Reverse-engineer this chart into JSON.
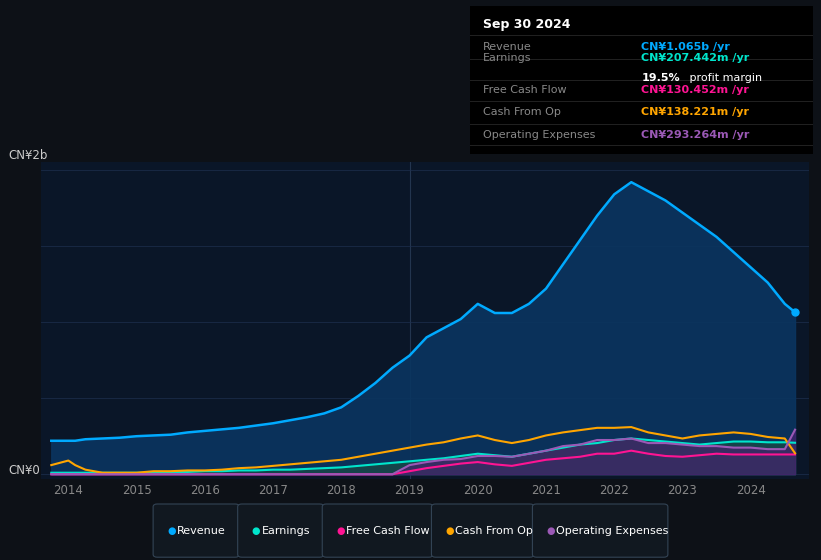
{
  "bg_color": "#0d1117",
  "plot_bg_color": "#0a1628",
  "revenue_color": "#00aaff",
  "earnings_color": "#00e5cc",
  "fcf_color": "#ff1493",
  "cashfromop_color": "#ffa500",
  "opex_color": "#9b59b6",
  "revenue_fill_color": "#0a3560",
  "earnings_fill_color": "#1a4a45",
  "opex_fill_color": "#4a2070",
  "y_label_top": "CN¥2b",
  "y_label_bottom": "CN¥0",
  "info_box": {
    "date": "Sep 30 2024",
    "revenue_label": "Revenue",
    "revenue_value": "CN¥1.065b",
    "revenue_color": "#00aaff",
    "earnings_label": "Earnings",
    "earnings_value": "CN¥207.442m",
    "earnings_color": "#00e5cc",
    "fcf_label": "Free Cash Flow",
    "fcf_value": "CN¥130.452m",
    "fcf_color": "#ff1493",
    "cashop_label": "Cash From Op",
    "cashop_value": "CN¥138.221m",
    "cashop_color": "#ffa500",
    "opex_label": "Operating Expenses",
    "opex_value": "CN¥293.264m",
    "opex_color": "#9b59b6"
  },
  "years": [
    2013.75,
    2014.0,
    2014.1,
    2014.25,
    2014.5,
    2014.75,
    2015.0,
    2015.25,
    2015.5,
    2015.75,
    2016.0,
    2016.25,
    2016.5,
    2016.75,
    2017.0,
    2017.25,
    2017.5,
    2017.75,
    2018.0,
    2018.25,
    2018.5,
    2018.75,
    2019.0,
    2019.25,
    2019.5,
    2019.75,
    2020.0,
    2020.25,
    2020.5,
    2020.75,
    2021.0,
    2021.25,
    2021.5,
    2021.75,
    2022.0,
    2022.25,
    2022.5,
    2022.75,
    2023.0,
    2023.25,
    2023.5,
    2023.75,
    2024.0,
    2024.25,
    2024.5,
    2024.65
  ],
  "revenue": [
    0.22,
    0.22,
    0.22,
    0.23,
    0.235,
    0.24,
    0.25,
    0.255,
    0.26,
    0.275,
    0.285,
    0.295,
    0.305,
    0.32,
    0.335,
    0.355,
    0.375,
    0.4,
    0.44,
    0.515,
    0.6,
    0.7,
    0.78,
    0.9,
    0.96,
    1.02,
    1.12,
    1.06,
    1.06,
    1.12,
    1.22,
    1.38,
    1.54,
    1.7,
    1.84,
    1.92,
    1.86,
    1.8,
    1.72,
    1.64,
    1.56,
    1.46,
    1.36,
    1.26,
    1.12,
    1.065
  ],
  "earnings": [
    0.01,
    0.01,
    0.01,
    0.01,
    0.01,
    0.01,
    0.01,
    0.01,
    0.015,
    0.015,
    0.02,
    0.02,
    0.025,
    0.025,
    0.03,
    0.03,
    0.035,
    0.04,
    0.045,
    0.055,
    0.065,
    0.075,
    0.085,
    0.095,
    0.105,
    0.12,
    0.135,
    0.125,
    0.115,
    0.135,
    0.155,
    0.175,
    0.195,
    0.205,
    0.225,
    0.235,
    0.225,
    0.215,
    0.205,
    0.195,
    0.205,
    0.215,
    0.215,
    0.21,
    0.21,
    0.207
  ],
  "fcf": [
    0.0,
    0.0,
    0.0,
    0.0,
    0.0,
    0.0,
    0.0,
    0.0,
    0.0,
    0.0,
    0.0,
    0.0,
    0.0,
    0.0,
    0.0,
    0.0,
    0.0,
    0.0,
    0.0,
    0.0,
    0.0,
    0.0,
    0.02,
    0.04,
    0.055,
    0.07,
    0.08,
    0.065,
    0.055,
    0.075,
    0.095,
    0.105,
    0.115,
    0.135,
    0.135,
    0.155,
    0.135,
    0.12,
    0.115,
    0.125,
    0.135,
    0.13,
    0.13,
    0.13,
    0.13,
    0.13
  ],
  "cashfromop": [
    0.06,
    0.09,
    0.06,
    0.03,
    0.01,
    0.01,
    0.01,
    0.02,
    0.02,
    0.025,
    0.025,
    0.03,
    0.04,
    0.045,
    0.055,
    0.065,
    0.075,
    0.085,
    0.095,
    0.115,
    0.135,
    0.155,
    0.175,
    0.195,
    0.21,
    0.235,
    0.255,
    0.225,
    0.205,
    0.225,
    0.255,
    0.275,
    0.29,
    0.305,
    0.305,
    0.31,
    0.275,
    0.255,
    0.235,
    0.255,
    0.265,
    0.275,
    0.265,
    0.245,
    0.235,
    0.138
  ],
  "opex": [
    0.0,
    0.0,
    0.0,
    0.0,
    0.0,
    0.0,
    0.0,
    0.0,
    0.0,
    0.0,
    0.0,
    0.0,
    0.0,
    0.0,
    0.0,
    0.0,
    0.0,
    0.0,
    0.0,
    0.0,
    0.0,
    0.0,
    0.06,
    0.08,
    0.095,
    0.1,
    0.12,
    0.12,
    0.115,
    0.135,
    0.155,
    0.185,
    0.195,
    0.225,
    0.225,
    0.235,
    0.205,
    0.205,
    0.195,
    0.185,
    0.185,
    0.175,
    0.175,
    0.165,
    0.165,
    0.293
  ],
  "xlim": [
    2013.6,
    2024.85
  ],
  "ylim": [
    -0.03,
    2.05
  ],
  "yticks": [
    0.0,
    0.5,
    1.0,
    1.5,
    2.0
  ],
  "xtick_positions": [
    2014,
    2015,
    2016,
    2017,
    2018,
    2019,
    2020,
    2021,
    2022,
    2023,
    2024
  ],
  "legend_items": [
    {
      "color": "#00aaff",
      "label": "Revenue"
    },
    {
      "color": "#00e5cc",
      "label": "Earnings"
    },
    {
      "color": "#ff1493",
      "label": "Free Cash Flow"
    },
    {
      "color": "#ffa500",
      "label": "Cash From Op"
    },
    {
      "color": "#9b59b6",
      "label": "Operating Expenses"
    }
  ]
}
